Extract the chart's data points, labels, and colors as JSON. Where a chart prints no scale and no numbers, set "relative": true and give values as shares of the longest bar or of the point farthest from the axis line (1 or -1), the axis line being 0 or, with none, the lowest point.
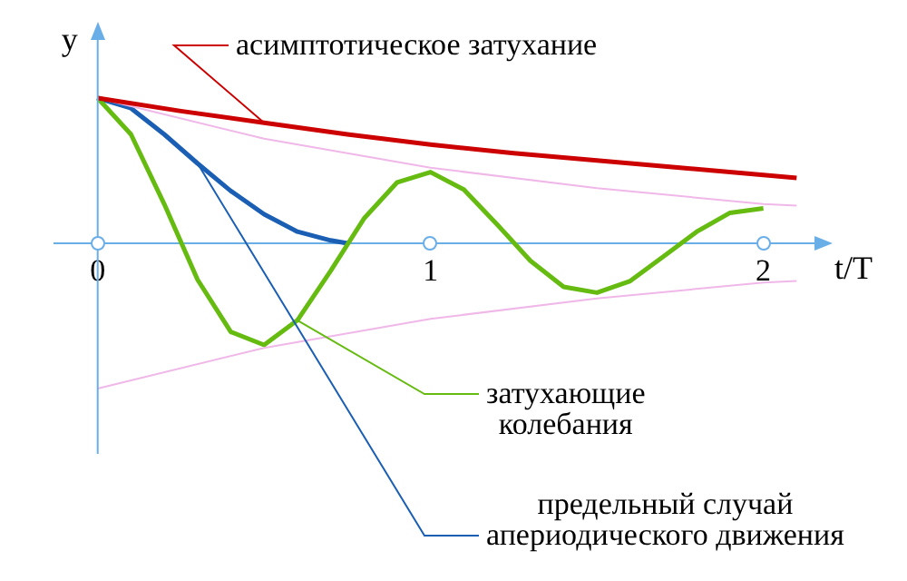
{
  "chart_data": {
    "type": "line",
    "relative": true,
    "xlabel": "t/T",
    "ylabel": "y",
    "xlim": [
      -0.13,
      2.17
    ],
    "xticks": [
      0,
      1,
      2
    ],
    "grid": false,
    "legend": false,
    "marker": "none",
    "line_style": "solid",
    "ref_lines": [
      {
        "axis": "x",
        "value": 0,
        "color": "#6aaee8"
      }
    ],
    "series": [
      {
        "name": "асимптотическое затухание",
        "color": "#cc0000",
        "x": [
          0,
          0.25,
          0.5,
          0.75,
          1,
          1.25,
          1.5,
          1.75,
          2,
          2.1
        ],
        "values": [
          1,
          0.91,
          0.83,
          0.75,
          0.68,
          0.62,
          0.57,
          0.52,
          0.47,
          0.45
        ]
      },
      {
        "color": "#f0b8e8",
        "x": [
          0,
          0.5,
          1,
          1.5,
          2,
          2.1
        ],
        "values": [
          1,
          0.72,
          0.52,
          0.38,
          0.27,
          0.26
        ]
      },
      {
        "color": "#f0b8e8",
        "x": [
          0,
          0.5,
          1,
          1.5,
          2,
          2.1
        ],
        "values": [
          -1,
          -0.72,
          -0.52,
          -0.38,
          -0.27,
          -0.26
        ]
      },
      {
        "name": "затухающие колебания",
        "color": "#66bb11",
        "x": [
          0,
          0.1,
          0.2,
          0.3,
          0.4,
          0.5,
          0.6,
          0.7,
          0.8,
          0.9,
          1,
          1.1,
          1.2,
          1.3,
          1.4,
          1.5,
          1.6,
          1.7,
          1.8,
          1.9,
          2
        ],
        "values": [
          1,
          0.75,
          0.27,
          -0.25,
          -0.61,
          -0.7,
          -0.53,
          -0.19,
          0.17,
          0.42,
          0.49,
          0.37,
          0.13,
          -0.12,
          -0.3,
          -0.34,
          -0.26,
          -0.09,
          0.08,
          0.21,
          0.24
        ]
      },
      {
        "name": "предельный случай апериодического движения",
        "color": "#1a5fb4",
        "x": [
          0,
          0.1,
          0.2,
          0.3,
          0.4,
          0.5,
          0.6,
          0.7,
          0.75
        ],
        "values": [
          1,
          0.93,
          0.75,
          0.55,
          0.36,
          0.2,
          0.08,
          0.02,
          0
        ]
      }
    ]
  }
}
